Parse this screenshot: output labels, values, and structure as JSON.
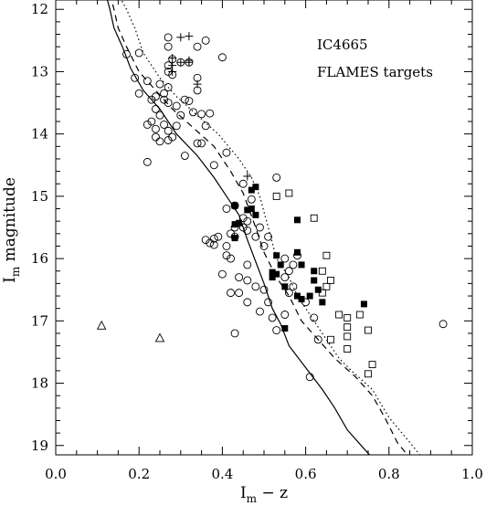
{
  "chart_data": {
    "type": "scatter",
    "title": "",
    "xlabel_main": "I",
    "xlabel_sub": "m",
    "xlabel_rest": " − z",
    "ylabel_main": "I",
    "ylabel_sub": "m",
    "ylabel_rest": " magnitude",
    "xlim": [
      0.0,
      1.0
    ],
    "ylim": [
      19.15,
      11.85
    ],
    "y_inverted": true,
    "x_major_ticks": [
      0.0,
      0.2,
      0.4,
      0.6,
      0.8,
      1.0
    ],
    "x_tick_labels": [
      "0.0",
      "0.2",
      "0.4",
      "0.6",
      "0.8",
      "1.0"
    ],
    "y_major_ticks": [
      12,
      13,
      14,
      15,
      16,
      17,
      18,
      19
    ],
    "y_tick_labels": [
      "12",
      "13",
      "14",
      "15",
      "16",
      "17",
      "18",
      "19"
    ],
    "grid": false,
    "annotations": [
      "IC4665",
      "FLAMES targets"
    ],
    "series": [
      {
        "marker": "open-circle",
        "points": [
          [
            0.17,
            12.72
          ],
          [
            0.2,
            12.7
          ],
          [
            0.27,
            12.45
          ],
          [
            0.27,
            12.6
          ],
          [
            0.28,
            12.8
          ],
          [
            0.27,
            12.9
          ],
          [
            0.3,
            12.85
          ],
          [
            0.32,
            12.85
          ],
          [
            0.34,
            12.6
          ],
          [
            0.36,
            12.5
          ],
          [
            0.4,
            12.77
          ],
          [
            0.27,
            13.0
          ],
          [
            0.28,
            13.05
          ],
          [
            0.19,
            13.1
          ],
          [
            0.22,
            13.15
          ],
          [
            0.25,
            13.2
          ],
          [
            0.27,
            13.25
          ],
          [
            0.26,
            13.35
          ],
          [
            0.24,
            13.4
          ],
          [
            0.23,
            13.45
          ],
          [
            0.2,
            13.35
          ],
          [
            0.26,
            13.45
          ],
          [
            0.27,
            13.5
          ],
          [
            0.29,
            13.55
          ],
          [
            0.31,
            13.45
          ],
          [
            0.32,
            13.47
          ],
          [
            0.34,
            13.1
          ],
          [
            0.34,
            13.3
          ],
          [
            0.24,
            13.6
          ],
          [
            0.25,
            13.7
          ],
          [
            0.23,
            13.8
          ],
          [
            0.24,
            13.92
          ],
          [
            0.26,
            13.85
          ],
          [
            0.27,
            13.95
          ],
          [
            0.22,
            13.85
          ],
          [
            0.28,
            14.05
          ],
          [
            0.27,
            14.1
          ],
          [
            0.25,
            14.12
          ],
          [
            0.24,
            14.05
          ],
          [
            0.3,
            13.7
          ],
          [
            0.33,
            13.65
          ],
          [
            0.35,
            13.68
          ],
          [
            0.37,
            13.67
          ],
          [
            0.36,
            13.87
          ],
          [
            0.29,
            13.87
          ],
          [
            0.34,
            14.15
          ],
          [
            0.35,
            14.15
          ],
          [
            0.22,
            14.45
          ],
          [
            0.31,
            14.35
          ],
          [
            0.41,
            14.3
          ],
          [
            0.38,
            14.5
          ],
          [
            0.45,
            14.8
          ],
          [
            0.47,
            15.05
          ],
          [
            0.41,
            15.2
          ],
          [
            0.43,
            15.15
          ],
          [
            0.45,
            15.35
          ],
          [
            0.46,
            15.4
          ],
          [
            0.43,
            15.5
          ],
          [
            0.42,
            15.6
          ],
          [
            0.43,
            15.65
          ],
          [
            0.45,
            15.5
          ],
          [
            0.46,
            15.55
          ],
          [
            0.36,
            15.7
          ],
          [
            0.38,
            15.68
          ],
          [
            0.39,
            15.65
          ],
          [
            0.37,
            15.75
          ],
          [
            0.38,
            15.78
          ],
          [
            0.41,
            15.8
          ],
          [
            0.41,
            15.95
          ],
          [
            0.42,
            16.0
          ],
          [
            0.4,
            16.25
          ],
          [
            0.44,
            16.3
          ],
          [
            0.46,
            16.1
          ],
          [
            0.46,
            16.35
          ],
          [
            0.48,
            16.45
          ],
          [
            0.44,
            16.55
          ],
          [
            0.42,
            16.55
          ],
          [
            0.46,
            16.7
          ],
          [
            0.43,
            17.2
          ],
          [
            0.49,
            16.85
          ],
          [
            0.5,
            16.5
          ],
          [
            0.51,
            16.7
          ],
          [
            0.52,
            16.95
          ],
          [
            0.53,
            17.15
          ],
          [
            0.55,
            16.9
          ],
          [
            0.56,
            16.55
          ],
          [
            0.57,
            16.45
          ],
          [
            0.56,
            16.2
          ],
          [
            0.55,
            16.0
          ],
          [
            0.57,
            16.1
          ],
          [
            0.58,
            15.95
          ],
          [
            0.6,
            16.7
          ],
          [
            0.62,
            16.95
          ],
          [
            0.63,
            17.3
          ],
          [
            0.61,
            17.9
          ],
          [
            0.5,
            15.8
          ],
          [
            0.51,
            15.65
          ],
          [
            0.49,
            15.5
          ],
          [
            0.48,
            15.65
          ],
          [
            0.53,
            14.7
          ],
          [
            0.93,
            17.05
          ],
          [
            0.55,
            16.3
          ]
        ]
      },
      {
        "marker": "filled-square",
        "points": [
          [
            0.47,
            14.9
          ],
          [
            0.48,
            14.85
          ],
          [
            0.46,
            15.22
          ],
          [
            0.47,
            15.2
          ],
          [
            0.48,
            15.3
          ],
          [
            0.43,
            15.15
          ],
          [
            0.44,
            15.43
          ],
          [
            0.43,
            15.45
          ],
          [
            0.43,
            15.67
          ],
          [
            0.58,
            15.38
          ],
          [
            0.53,
            15.95
          ],
          [
            0.54,
            16.1
          ],
          [
            0.52,
            16.22
          ],
          [
            0.53,
            16.25
          ],
          [
            0.52,
            16.3
          ],
          [
            0.55,
            16.45
          ],
          [
            0.58,
            15.9
          ],
          [
            0.59,
            16.1
          ],
          [
            0.62,
            16.2
          ],
          [
            0.62,
            16.35
          ],
          [
            0.63,
            16.5
          ],
          [
            0.64,
            16.7
          ],
          [
            0.61,
            16.6
          ],
          [
            0.59,
            16.65
          ],
          [
            0.58,
            16.6
          ],
          [
            0.55,
            17.12
          ],
          [
            0.74,
            16.73
          ]
        ]
      },
      {
        "marker": "open-square",
        "points": [
          [
            0.53,
            15.0
          ],
          [
            0.56,
            14.95
          ],
          [
            0.62,
            15.35
          ],
          [
            0.65,
            15.95
          ],
          [
            0.64,
            16.2
          ],
          [
            0.66,
            16.35
          ],
          [
            0.65,
            16.45
          ],
          [
            0.64,
            16.55
          ],
          [
            0.68,
            16.9
          ],
          [
            0.7,
            16.95
          ],
          [
            0.73,
            16.9
          ],
          [
            0.7,
            17.1
          ],
          [
            0.66,
            17.3
          ],
          [
            0.7,
            17.45
          ],
          [
            0.7,
            17.25
          ],
          [
            0.75,
            17.15
          ],
          [
            0.76,
            17.7
          ],
          [
            0.75,
            17.85
          ]
        ]
      },
      {
        "marker": "plus",
        "points": [
          [
            0.3,
            12.45
          ],
          [
            0.32,
            12.43
          ],
          [
            0.28,
            12.78
          ],
          [
            0.28,
            12.9
          ],
          [
            0.3,
            12.85
          ],
          [
            0.32,
            12.82
          ],
          [
            0.32,
            12.85
          ],
          [
            0.28,
            13.0
          ],
          [
            0.34,
            13.2
          ],
          [
            0.46,
            14.68
          ]
        ]
      },
      {
        "marker": "open-triangle",
        "points": [
          [
            0.11,
            17.08
          ],
          [
            0.25,
            17.28
          ]
        ]
      },
      {
        "line_style": "dotted",
        "points": [
          [
            0.15,
            11.75
          ],
          [
            0.17,
            12.0
          ],
          [
            0.19,
            12.3
          ],
          [
            0.21,
            12.7
          ],
          [
            0.25,
            13.1
          ],
          [
            0.29,
            13.4
          ],
          [
            0.34,
            13.7
          ],
          [
            0.39,
            14.0
          ],
          [
            0.44,
            14.4
          ],
          [
            0.47,
            14.7
          ],
          [
            0.49,
            15.0
          ],
          [
            0.51,
            15.5
          ],
          [
            0.53,
            16.0
          ],
          [
            0.56,
            16.3
          ],
          [
            0.58,
            16.6
          ],
          [
            0.61,
            16.9
          ],
          [
            0.64,
            17.2
          ],
          [
            0.68,
            17.6
          ],
          [
            0.71,
            17.8
          ],
          [
            0.76,
            18.1
          ],
          [
            0.8,
            18.55
          ],
          [
            0.85,
            18.95
          ],
          [
            0.88,
            19.2
          ]
        ]
      },
      {
        "line_style": "dashed",
        "points": [
          [
            0.13,
            11.75
          ],
          [
            0.14,
            12.0
          ],
          [
            0.15,
            12.3
          ],
          [
            0.17,
            12.6
          ],
          [
            0.2,
            13.0
          ],
          [
            0.24,
            13.3
          ],
          [
            0.28,
            13.6
          ],
          [
            0.33,
            13.9
          ],
          [
            0.38,
            14.2
          ],
          [
            0.42,
            14.6
          ],
          [
            0.45,
            14.95
          ],
          [
            0.48,
            15.5
          ],
          [
            0.5,
            15.9
          ],
          [
            0.53,
            16.3
          ],
          [
            0.56,
            16.6
          ],
          [
            0.59,
            17.0
          ],
          [
            0.63,
            17.3
          ],
          [
            0.67,
            17.6
          ],
          [
            0.72,
            17.9
          ],
          [
            0.76,
            18.2
          ],
          [
            0.79,
            18.55
          ],
          [
            0.82,
            18.95
          ],
          [
            0.85,
            19.2
          ]
        ]
      },
      {
        "line_style": "solid",
        "points": [
          [
            0.12,
            11.75
          ],
          [
            0.13,
            12.0
          ],
          [
            0.14,
            12.3
          ],
          [
            0.16,
            12.6
          ],
          [
            0.18,
            12.95
          ],
          [
            0.21,
            13.3
          ],
          [
            0.25,
            13.6
          ],
          [
            0.29,
            14.0
          ],
          [
            0.34,
            14.35
          ],
          [
            0.38,
            14.7
          ],
          [
            0.41,
            15.0
          ],
          [
            0.44,
            15.3
          ],
          [
            0.46,
            15.7
          ],
          [
            0.48,
            16.05
          ],
          [
            0.5,
            16.4
          ],
          [
            0.52,
            16.8
          ],
          [
            0.54,
            17.05
          ],
          [
            0.56,
            17.4
          ],
          [
            0.6,
            17.75
          ],
          [
            0.64,
            18.1
          ],
          [
            0.67,
            18.4
          ],
          [
            0.7,
            18.75
          ],
          [
            0.74,
            19.05
          ],
          [
            0.76,
            19.2
          ]
        ]
      }
    ]
  }
}
